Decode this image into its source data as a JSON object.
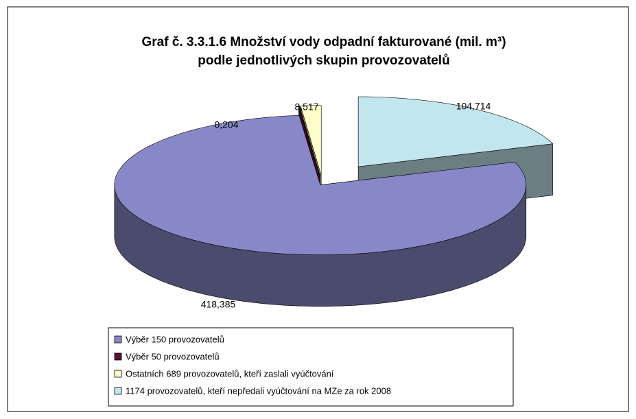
{
  "chart_data": {
    "type": "pie",
    "title": [
      "Graf č. 3.3.1.6 Množství vody odpadní fakturované (mil. m³)",
      "podle jednotlivých skupin provozovatelů"
    ],
    "categories": [
      "Výběr 150 provozovatelů",
      "Výběr 50 provozovatelů",
      "Ostatních 689 provozovatelů, kteří zaslali vyúčtování",
      "1174 provozovatelů, kteří nepředali vyúčtování na MZe za rok 2008"
    ],
    "values": [
      418.385,
      0.204,
      8.517,
      104.714
    ],
    "value_labels": [
      "418,385",
      "0,204",
      "8,517",
      "104,714"
    ],
    "colors": [
      "#8888c8",
      "#5a1034",
      "#ffffcc",
      "#c2e6ee"
    ],
    "legend": "bottom"
  }
}
